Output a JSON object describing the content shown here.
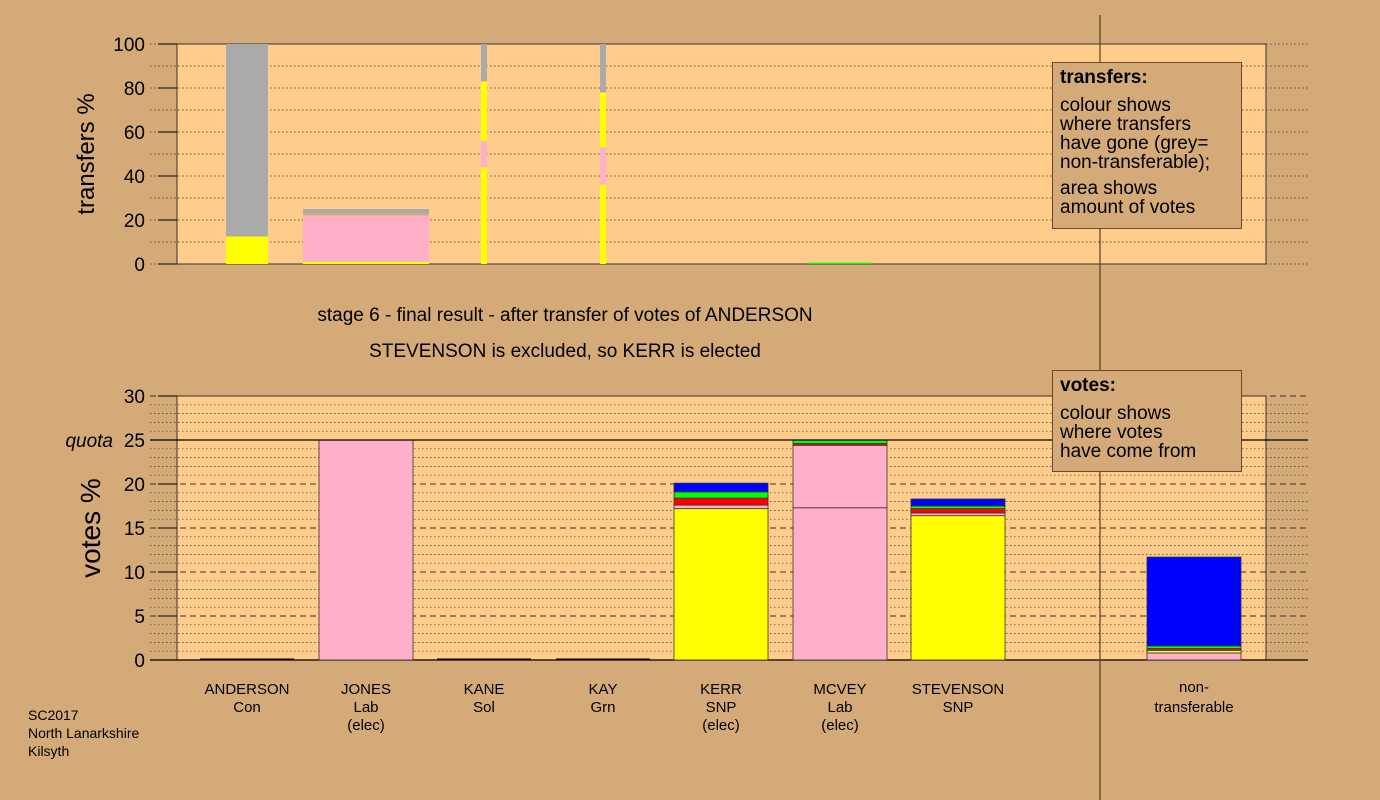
{
  "captions": {
    "stage": "stage 6 - final result - after transfer of votes of ANDERSON",
    "result": "STEVENSON is excluded, so KERR is elected"
  },
  "legend_transfers": {
    "title": "transfers:",
    "lines": [
      "colour shows",
      "where transfers",
      "have gone (grey=",
      "non-transferable);"
    ],
    "lines2": [
      "area shows",
      "amount of votes"
    ]
  },
  "legend_votes": {
    "title": "votes:",
    "lines": [
      "colour shows",
      "where votes",
      "have come from"
    ]
  },
  "footer": [
    "SC2017",
    "North Lanarkshire",
    "Kilsyth"
  ],
  "colors": {
    "background": "#d4aa78",
    "plot": "#ffcc8c",
    "Con": "#0000ff",
    "Lab": "#ffb0c8",
    "SNP": "#ffff00",
    "Sol": "#ff0000",
    "Grn": "#00ff00",
    "nontransferable": "#aaaaaa"
  },
  "chart_data": [
    {
      "type": "bar",
      "panel": "transfers",
      "ylabel": "transfers %",
      "ylim": [
        0,
        100
      ],
      "yticks": [
        0,
        20,
        40,
        60,
        80,
        100
      ],
      "categories": [
        "ANDERSON",
        "JONES",
        "KANE",
        "KAY",
        "KERR",
        "MCVEY",
        "STEVENSON"
      ],
      "bars": [
        {
          "candidate": "ANDERSON",
          "width": "wide",
          "segments": [
            {
              "color": "SNP",
              "value": 12.5
            },
            {
              "color": "nontransferable",
              "value": 87.5
            }
          ]
        },
        {
          "candidate": "JONES",
          "width": "wide",
          "segments": [
            {
              "color": "SNP",
              "value": 1
            },
            {
              "color": "Lab",
              "value": 21
            },
            {
              "color": "background",
              "value": 1
            },
            {
              "color": "nontransferable",
              "value": 2
            }
          ]
        },
        {
          "candidate": "KANE",
          "width": "thin",
          "segments": [
            {
              "color": "SNP",
              "value": 44
            },
            {
              "color": "Lab",
              "value": 12
            },
            {
              "color": "SNP",
              "value": 27
            },
            {
              "color": "nontransferable",
              "value": 17
            }
          ]
        },
        {
          "candidate": "KAY",
          "width": "thin",
          "segments": [
            {
              "color": "SNP",
              "value": 36
            },
            {
              "color": "Lab",
              "value": 17
            },
            {
              "color": "SNP",
              "value": 25
            },
            {
              "color": "nontransferable",
              "value": 22
            }
          ]
        },
        {
          "candidate": "MCVEY",
          "width": "wide",
          "segments": [
            {
              "color": "Grn",
              "value": 0.6
            }
          ]
        }
      ]
    },
    {
      "type": "bar",
      "panel": "votes",
      "ylabel": "votes %",
      "ylim": [
        0,
        30
      ],
      "yticks": [
        0,
        5,
        10,
        15,
        20,
        25,
        30
      ],
      "quota": 25,
      "quota_label": "quota",
      "categories": [
        {
          "name": "ANDERSON",
          "party": "Con",
          "status": ""
        },
        {
          "name": "JONES",
          "party": "Lab",
          "status": "(elec)"
        },
        {
          "name": "KANE",
          "party": "Sol",
          "status": ""
        },
        {
          "name": "KAY",
          "party": "Grn",
          "status": ""
        },
        {
          "name": "KERR",
          "party": "SNP",
          "status": "(elec)"
        },
        {
          "name": "MCVEY",
          "party": "Lab",
          "status": "(elec)"
        },
        {
          "name": "STEVENSON",
          "party": "SNP",
          "status": ""
        }
      ],
      "nontransferable_label": [
        "non-",
        "transferable"
      ],
      "bars": [
        {
          "candidate": "ANDERSON",
          "segments": []
        },
        {
          "candidate": "JONES",
          "segments": [
            {
              "color": "Lab",
              "value": 25
            }
          ]
        },
        {
          "candidate": "KANE",
          "segments": []
        },
        {
          "candidate": "KAY",
          "segments": []
        },
        {
          "candidate": "KERR",
          "segments": [
            {
              "color": "SNP",
              "value": 17.2
            },
            {
              "color": "Lab",
              "value": 0.4
            },
            {
              "color": "Sol",
              "value": 0.8
            },
            {
              "color": "Grn",
              "value": 0.7
            },
            {
              "color": "Con",
              "value": 1
            }
          ]
        },
        {
          "candidate": "MCVEY",
          "segments": [
            {
              "color": "Lab",
              "value": 17.3
            },
            {
              "color": "Lab",
              "value": 7.1
            },
            {
              "color": "Sol",
              "value": 0.2
            },
            {
              "color": "Grn",
              "value": 0.4
            }
          ]
        },
        {
          "candidate": "STEVENSON",
          "segments": [
            {
              "color": "SNP",
              "value": 16.4
            },
            {
              "color": "Lab",
              "value": 0.3
            },
            {
              "color": "Sol",
              "value": 0.5
            },
            {
              "color": "Grn",
              "value": 0.3
            },
            {
              "color": "Con",
              "value": 0.8
            }
          ]
        },
        {
          "candidate": "nontransferable",
          "segments": [
            {
              "color": "Lab",
              "value": 0.8
            },
            {
              "color": "SNP",
              "value": 0.3
            },
            {
              "color": "Sol",
              "value": 0.2
            },
            {
              "color": "Grn",
              "value": 0.3
            },
            {
              "color": "Con",
              "value": 10.1
            }
          ]
        }
      ]
    }
  ]
}
